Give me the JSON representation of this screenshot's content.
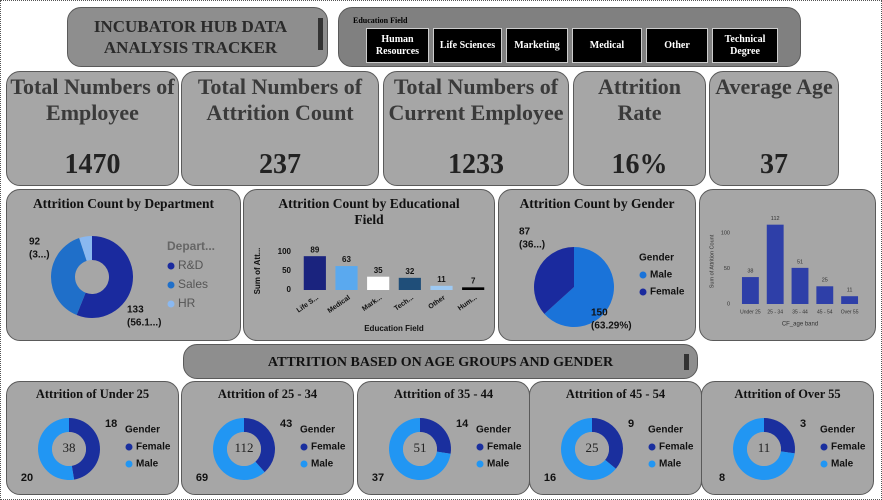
{
  "header": {
    "title": "INCUBATOR HUB DATA ANALYSIS TRACKER"
  },
  "filter": {
    "label": "Education Field",
    "options": [
      "Human Resources",
      "Life Sciences",
      "Marketing",
      "Medical",
      "Other",
      "Technical Degree"
    ]
  },
  "kpis": [
    {
      "label": "Total Numbers of Employee",
      "value": 1470
    },
    {
      "label": "Total Numbers of Attrition Count",
      "value": 237
    },
    {
      "label": "Total Numbers of Current Employee",
      "value": 1233
    },
    {
      "label": "Attrition Rate",
      "value": "16%"
    },
    {
      "label": "Average Age",
      "value": 37
    }
  ],
  "section_title": "ATTRITION BASED ON AGE GROUPS AND GENDER",
  "chart_data": [
    {
      "type": "donut",
      "title": "Attrition Count by Department",
      "legend_title": "Depart...",
      "categories": [
        "R&D",
        "Sales",
        "HR"
      ],
      "values": [
        133,
        92,
        12
      ],
      "percent_labels": [
        "(56.1...)",
        "(3...)",
        null
      ],
      "colors": [
        "#1a2a9e",
        "#1f6fc9",
        "#8ab8f0"
      ]
    },
    {
      "type": "bar",
      "title": "Attrition Count by Educational Field",
      "y_label": "Sum of Att...",
      "x_label": "Education Field",
      "categories": [
        "Life S...",
        "Medical",
        "Mark...",
        "Tech...",
        "Other",
        "Hum..."
      ],
      "values": [
        89,
        63,
        35,
        32,
        11,
        7
      ],
      "colors": [
        "#1a237e",
        "#5aa9ef",
        "#ffffff",
        "#1f4e79",
        "#9ec9f2",
        "#000000"
      ],
      "ylim": [
        0,
        100
      ],
      "yticks": [
        0,
        50,
        100
      ]
    },
    {
      "type": "donut",
      "title": "Attrition Count by Gender",
      "legend_title": "Gender",
      "categories": [
        "Male",
        "Female"
      ],
      "values": [
        150,
        87
      ],
      "percent_labels": [
        "(63.29%)",
        "(36...)"
      ],
      "colors": [
        "#1a73d9",
        "#1a2a9e"
      ]
    },
    {
      "type": "bar",
      "y_label": "Sum of Attrition Count",
      "x_label": "CF_age band",
      "categories": [
        "Under 25",
        "25 - 34",
        "35 - 44",
        "45 - 54",
        "Over 55"
      ],
      "values": [
        38,
        112,
        51,
        25,
        11
      ],
      "color": "#2e3fa8",
      "ylim": [
        0,
        120
      ],
      "yticks": [
        0,
        50,
        100
      ]
    },
    {
      "type": "donut",
      "title": "Attrition of Under 25",
      "legend_title": "Gender",
      "total": 38,
      "categories": [
        "Female",
        "Male"
      ],
      "values": [
        18,
        20
      ],
      "colors": [
        "#1a2f9e",
        "#2196f3"
      ]
    },
    {
      "type": "donut",
      "title": "Attrition of 25 - 34",
      "legend_title": "Gender",
      "total": 112,
      "categories": [
        "Female",
        "Male"
      ],
      "values": [
        43,
        69
      ],
      "colors": [
        "#1a2f9e",
        "#2196f3"
      ]
    },
    {
      "type": "donut",
      "title": "Attrition of 35 - 44",
      "legend_title": "Gender",
      "total": 51,
      "categories": [
        "Female",
        "Male"
      ],
      "values": [
        14,
        37
      ],
      "colors": [
        "#1a2f9e",
        "#2196f3"
      ]
    },
    {
      "type": "donut",
      "title": "Attrition of 45 - 54",
      "legend_title": "Gender",
      "total": 25,
      "categories": [
        "Female",
        "Male"
      ],
      "values": [
        9,
        16
      ],
      "colors": [
        "#1a2f9e",
        "#2196f3"
      ]
    },
    {
      "type": "donut",
      "title": "Attrition of Over 55",
      "legend_title": "Gender",
      "total": 11,
      "categories": [
        "Female",
        "Male"
      ],
      "values": [
        3,
        8
      ],
      "colors": [
        "#1a2f9e",
        "#2196f3"
      ]
    }
  ]
}
